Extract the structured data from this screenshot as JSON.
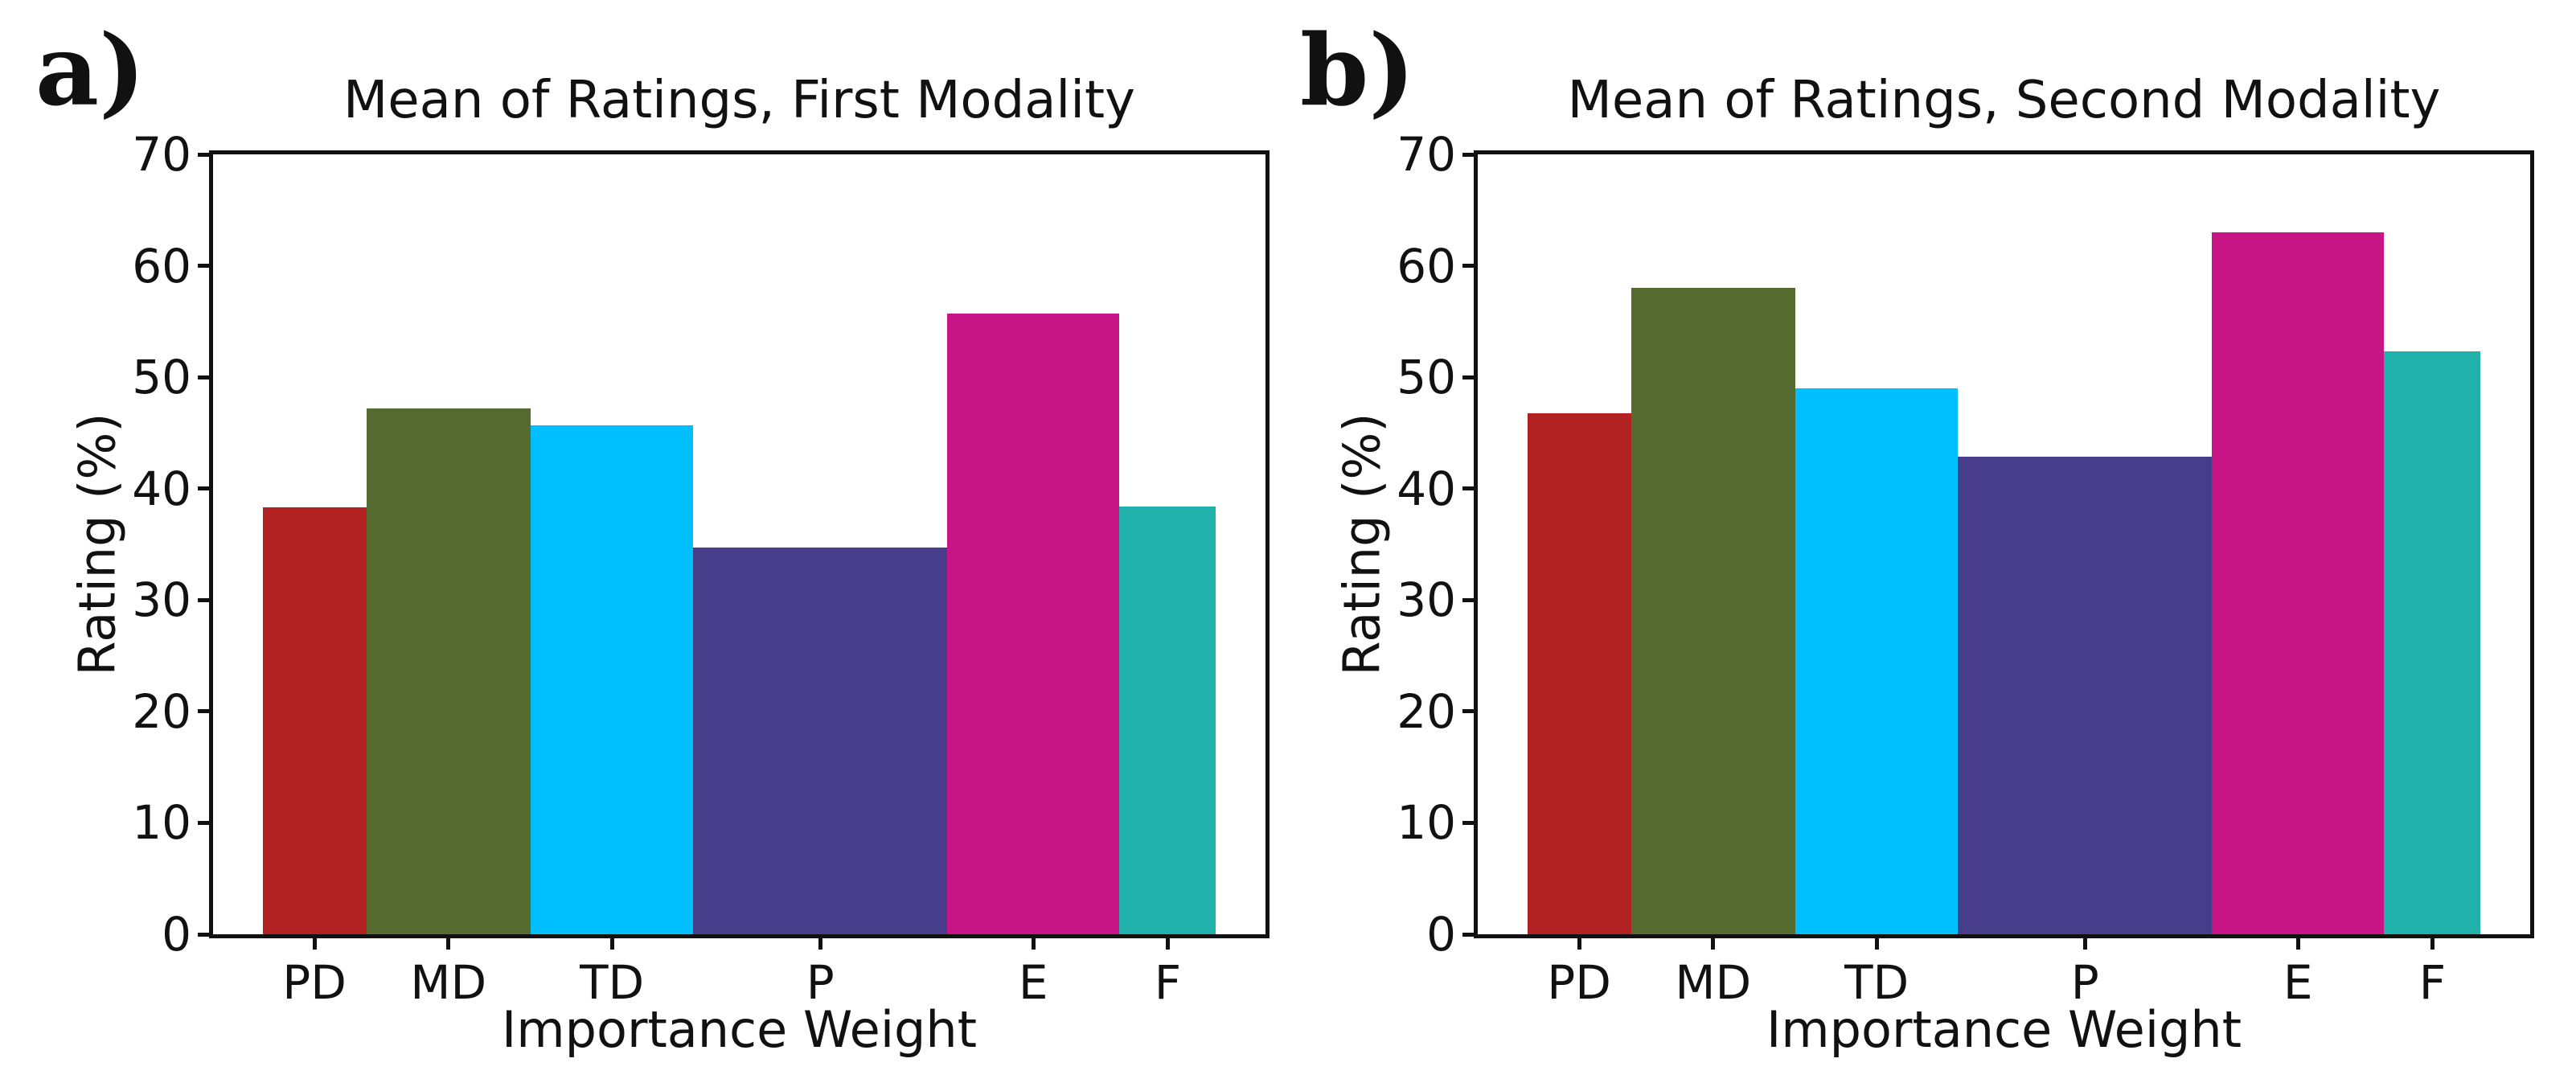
{
  "figure": {
    "background": "#ffffff",
    "text_color": "#111111"
  },
  "panels": [
    {
      "corner_label": "a)"
    },
    {
      "corner_label": "b)"
    }
  ],
  "chart_data": [
    {
      "type": "bar",
      "title": "Mean of Ratings, First Modality",
      "xlabel": "Importance Weight",
      "ylabel": "Rating (%)",
      "ylim": [
        0,
        70
      ],
      "yticks": [
        0,
        10,
        20,
        30,
        40,
        50,
        60,
        70
      ],
      "grid": false,
      "legend": false,
      "categories": [
        "PD",
        "MD",
        "TD",
        "P",
        "E",
        "F"
      ],
      "values": [
        38.3,
        47.2,
        45.7,
        34.7,
        55.7,
        38.4
      ],
      "colors": [
        "#b22222",
        "#556b2f",
        "#00bfff",
        "#483d8b",
        "#c71585",
        "#20b2aa"
      ],
      "bar_spans": [
        [
          0.047,
          0.1456
        ],
        [
          0.1456,
          0.3017
        ],
        [
          0.3017,
          0.4564
        ],
        [
          0.4564,
          0.6975
        ],
        [
          0.6975,
          0.8613
        ],
        [
          0.8613,
          0.953
        ]
      ]
    },
    {
      "type": "bar",
      "title": "Mean of Ratings, Second Modality",
      "xlabel": "Importance Weight",
      "ylabel": "Rating (%)",
      "ylim": [
        0,
        70
      ],
      "yticks": [
        0,
        10,
        20,
        30,
        40,
        50,
        60,
        70
      ],
      "grid": false,
      "legend": false,
      "categories": [
        "PD",
        "MD",
        "TD",
        "P",
        "E",
        "F"
      ],
      "values": [
        46.8,
        58.0,
        49.0,
        42.9,
        63.0,
        52.3
      ],
      "colors": [
        "#b22222",
        "#556b2f",
        "#00bfff",
        "#483d8b",
        "#c71585",
        "#20b2aa"
      ],
      "bar_spans": [
        [
          0.047,
          0.1456
        ],
        [
          0.1456,
          0.3017
        ],
        [
          0.3017,
          0.4564
        ],
        [
          0.4564,
          0.6975
        ],
        [
          0.6975,
          0.8613
        ],
        [
          0.8613,
          0.953
        ]
      ]
    }
  ]
}
